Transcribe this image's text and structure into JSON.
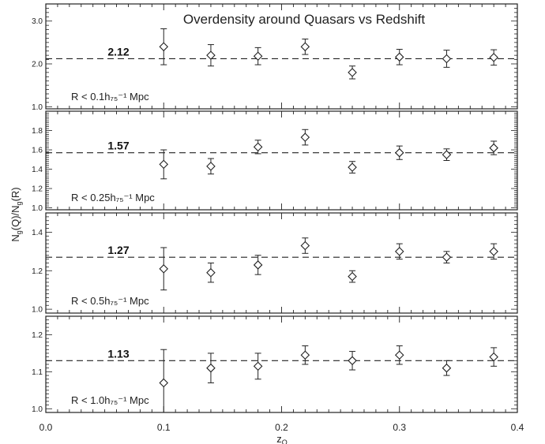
{
  "chart_data": {
    "type": "scatter",
    "title": "Overdensity around Quasars vs Redshift",
    "xlabel": "z_Q",
    "ylabel": "N_g(Q)/N_g(R)",
    "xlim": [
      0.0,
      0.4
    ],
    "x_ticks": [
      "0.0",
      "0.1",
      "0.2",
      "0.3",
      "0.4"
    ],
    "x": [
      0.1,
      0.14,
      0.18,
      0.22,
      0.26,
      0.3,
      0.34,
      0.38
    ],
    "panels": [
      {
        "label": "R < 0.1h₇₅⁻¹ Mpc",
        "reference_line": 2.12,
        "reference_label": "2.12",
        "ylim": [
          0.95,
          3.4
        ],
        "y_ticks": [
          "1.0",
          "2.0",
          "3.0"
        ],
        "y": [
          2.4,
          2.2,
          2.18,
          2.4,
          1.8,
          2.16,
          2.12,
          2.15
        ],
        "err": [
          0.42,
          0.25,
          0.2,
          0.18,
          0.15,
          0.18,
          0.2,
          0.18
        ]
      },
      {
        "label": "R < 0.25h₇₅⁻¹ Mpc",
        "reference_line": 1.57,
        "reference_label": "1.57",
        "ylim": [
          0.98,
          2.0
        ],
        "y_ticks": [
          "1.0",
          "1.2",
          "1.4",
          "1.6",
          "1.8"
        ],
        "y": [
          1.45,
          1.43,
          1.63,
          1.73,
          1.42,
          1.57,
          1.55,
          1.62
        ],
        "err": [
          0.15,
          0.08,
          0.07,
          0.08,
          0.06,
          0.07,
          0.06,
          0.07
        ]
      },
      {
        "label": "R < 0.5h₇₅⁻¹ Mpc",
        "reference_line": 1.27,
        "reference_label": "1.27",
        "ylim": [
          0.98,
          1.5
        ],
        "y_ticks": [
          "1.0",
          "1.2",
          "1.4"
        ],
        "y": [
          1.21,
          1.19,
          1.23,
          1.33,
          1.17,
          1.3,
          1.27,
          1.3
        ],
        "err": [
          0.11,
          0.05,
          0.05,
          0.04,
          0.03,
          0.04,
          0.03,
          0.04
        ]
      },
      {
        "label": "R < 1.0h₇₅⁻¹ Mpc",
        "reference_line": 1.13,
        "reference_label": "1.13",
        "ylim": [
          0.99,
          1.25
        ],
        "y_ticks": [
          "1.0",
          "1.1",
          "1.2"
        ],
        "y": [
          1.07,
          1.11,
          1.115,
          1.145,
          1.13,
          1.145,
          1.11,
          1.14
        ],
        "err": [
          0.09,
          0.04,
          0.035,
          0.025,
          0.025,
          0.025,
          0.02,
          0.025
        ]
      }
    ]
  }
}
